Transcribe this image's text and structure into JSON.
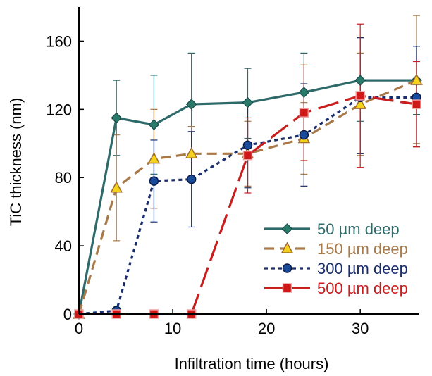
{
  "chart_data": {
    "type": "line",
    "title": "",
    "xlabel": "Infiltration time (hours)",
    "ylabel": "TiC thickness (nm)",
    "xlim": [
      0,
      36.3
    ],
    "ylim": [
      0,
      180
    ],
    "xticks": [
      0,
      10,
      20,
      30
    ],
    "yticks": [
      0,
      40,
      80,
      120,
      160
    ],
    "xtick_labels": [
      "0",
      "10",
      "20",
      "30"
    ],
    "ytick_labels": [
      "0",
      "40",
      "80",
      "120",
      "160"
    ],
    "grid": false,
    "legend_position": "bottom-right",
    "x": [
      0,
      4,
      8,
      12,
      18,
      24,
      30,
      36
    ],
    "series": [
      {
        "name": "50 µm deep",
        "color": "#2e6a6a",
        "marker": "diamond",
        "dash": "solid",
        "values": [
          0,
          115,
          111,
          123,
          124,
          130,
          137,
          137
        ],
        "err_low": [
          0,
          93,
          82,
          93,
          103,
          107,
          113,
          117
        ],
        "err_high": [
          0,
          137,
          140,
          153,
          144,
          153,
          162,
          157
        ]
      },
      {
        "name": "150 µm deep",
        "color": "#a87a4a",
        "marker": "triangle",
        "dash": "dashed",
        "values": [
          0,
          74,
          91,
          94,
          94,
          103,
          123,
          137
        ],
        "err_low": [
          0,
          43,
          62,
          78,
          75,
          82,
          93,
          100
        ],
        "err_high": [
          0,
          105,
          120,
          110,
          113,
          124,
          153,
          175
        ]
      },
      {
        "name": "300 µm deep",
        "color": "#1a2e6e",
        "marker": "circle",
        "dash": "dotted",
        "values": [
          0,
          2,
          78,
          79,
          99,
          105,
          127,
          127
        ],
        "err_low": [
          0,
          0,
          54,
          51,
          74,
          75,
          94,
          98
        ],
        "err_high": [
          0,
          2,
          102,
          107,
          124,
          135,
          162,
          157
        ]
      },
      {
        "name": "500 µm deep",
        "color": "#c81e1e",
        "marker": "square",
        "dash": "longdash",
        "values": [
          0,
          0,
          0,
          0,
          93,
          118,
          128,
          123
        ],
        "err_low": [
          0,
          0,
          0,
          0,
          71,
          90,
          86,
          98
        ],
        "err_high": [
          0,
          0,
          0,
          0,
          115,
          146,
          170,
          148
        ]
      }
    ]
  }
}
